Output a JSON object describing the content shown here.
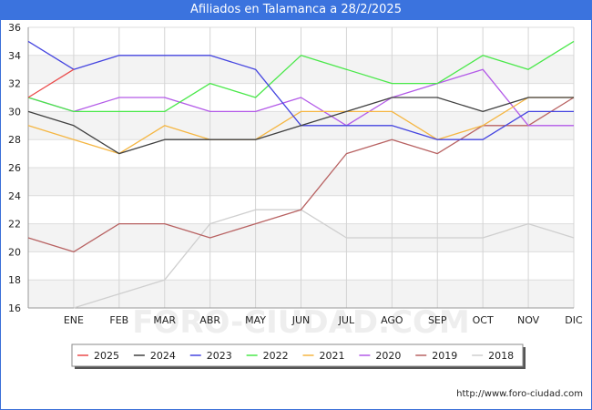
{
  "title": "Afiliados en Talamanca a 28/2/2025",
  "footer_url": "http://www.foro-ciudad.com",
  "watermark": "FORO-CIUDAD.COM",
  "chart_data": {
    "type": "line",
    "title": "Afiliados en Talamanca a 28/2/2025",
    "categories": [
      "",
      "ENE",
      "FEB",
      "MAR",
      "ABR",
      "MAY",
      "JUN",
      "JUL",
      "AGO",
      "SEP",
      "OCT",
      "NOV",
      "DIC"
    ],
    "ylim": [
      16,
      36
    ],
    "yticks": [
      16,
      18,
      20,
      22,
      24,
      26,
      28,
      30,
      32,
      34,
      36
    ],
    "grid": true,
    "legend_position": "bottom",
    "series": [
      {
        "name": "2025",
        "color": "#ea4a4a",
        "values": [
          31,
          33,
          null,
          null,
          null,
          null,
          null,
          null,
          null,
          null,
          null,
          null,
          null
        ]
      },
      {
        "name": "2024",
        "color": "#404040",
        "values": [
          30,
          29,
          27,
          28,
          28,
          28,
          29,
          30,
          31,
          31,
          30,
          31,
          31
        ]
      },
      {
        "name": "2023",
        "color": "#4545e0",
        "values": [
          35,
          33,
          34,
          34,
          34,
          33,
          29,
          29,
          29,
          28,
          28,
          30,
          30
        ]
      },
      {
        "name": "2022",
        "color": "#4ae84a",
        "values": [
          31,
          30,
          30,
          30,
          32,
          31,
          34,
          33,
          32,
          32,
          34,
          33,
          35
        ]
      },
      {
        "name": "2021",
        "color": "#f5b642",
        "values": [
          29,
          28,
          27,
          29,
          28,
          28,
          30,
          30,
          30,
          28,
          29,
          31,
          31
        ]
      },
      {
        "name": "2020",
        "color": "#b35ae8",
        "values": [
          31,
          30,
          31,
          31,
          30,
          30,
          31,
          29,
          31,
          32,
          33,
          29,
          29
        ]
      },
      {
        "name": "2019",
        "color": "#b86262",
        "values": [
          21,
          20,
          22,
          22,
          21,
          22,
          23,
          27,
          28,
          27,
          29,
          29,
          31
        ]
      },
      {
        "name": "2018",
        "color": "#cfcfcf",
        "values": [
          null,
          16,
          17,
          18,
          22,
          23,
          23,
          21,
          21,
          21,
          21,
          22,
          21
        ]
      }
    ]
  }
}
